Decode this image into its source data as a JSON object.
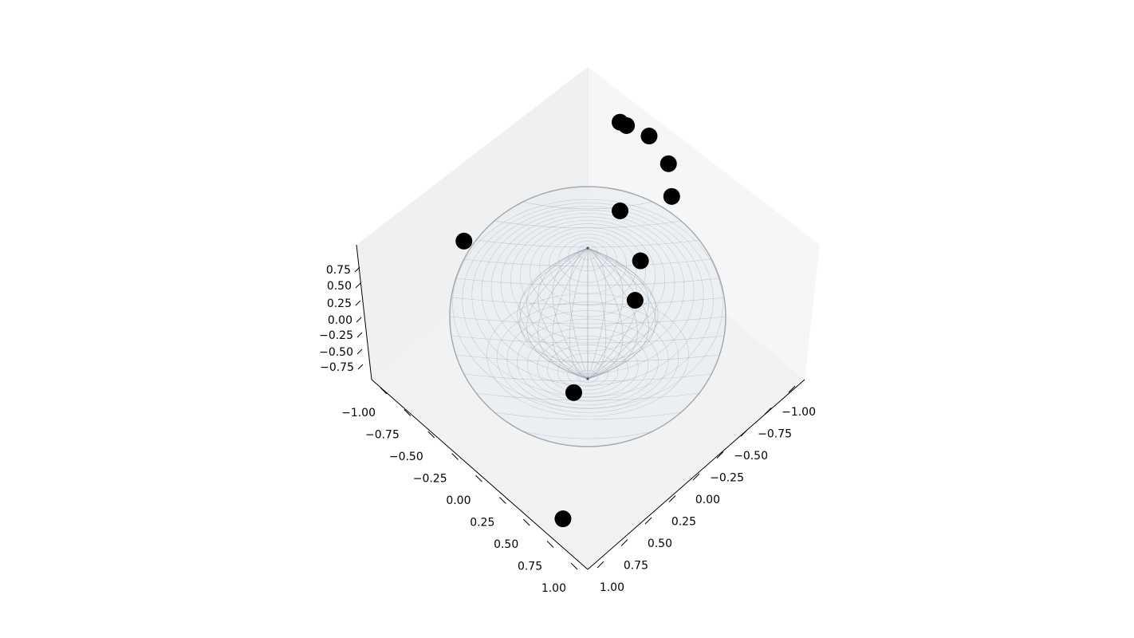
{
  "chart_data": {
    "type": "scatter",
    "projection": "3d",
    "title": "",
    "xlabel": "",
    "ylabel": "",
    "zlabel": "",
    "xlim": [
      -1.1,
      1.1
    ],
    "ylim": [
      -1.1,
      1.1
    ],
    "zlim": [
      -0.85,
      0.85
    ],
    "x_ticks": [
      "−1.00",
      "−0.75",
      "−0.50",
      "−0.25",
      "0.00",
      "0.25",
      "0.50",
      "0.75",
      "1.00"
    ],
    "y_ticks": [
      "−1.00",
      "−0.75",
      "−0.50",
      "−0.25",
      "0.00",
      "0.25",
      "0.50",
      "0.75",
      "1.00"
    ],
    "z_ticks": [
      "−0.75",
      "−0.50",
      "−0.25",
      "0.00",
      "0.25",
      "0.50",
      "0.75"
    ],
    "surface": {
      "shape": "unit sphere",
      "wireframe_color": "#8a9aa6",
      "face_color": "#e6ebef"
    },
    "points": [
      {
        "x": -0.6,
        "y": -0.3,
        "z": 0.73
      },
      {
        "x": -0.58,
        "y": -0.22,
        "z": 0.78
      },
      {
        "x": -0.62,
        "y": -0.05,
        "z": 0.78
      },
      {
        "x": -0.55,
        "y": 0.2,
        "z": 0.81
      },
      {
        "x": -0.4,
        "y": 0.38,
        "z": 0.83
      },
      {
        "x": 0.03,
        "y": 0.52,
        "z": 0.85
      },
      {
        "x": 0.18,
        "y": 0.62,
        "z": 0.76
      },
      {
        "x": -0.05,
        "y": 0.25,
        "z": 0.97
      },
      {
        "x": 0.45,
        "y": -0.7,
        "z": 0.55
      },
      {
        "x": 0.68,
        "y": 0.45,
        "z": -0.58
      },
      {
        "x": 0.68,
        "y": 0.55,
        "z": 0.48
      }
    ],
    "marker_color": "#000000",
    "grid": false,
    "view": "top-down oblique"
  }
}
